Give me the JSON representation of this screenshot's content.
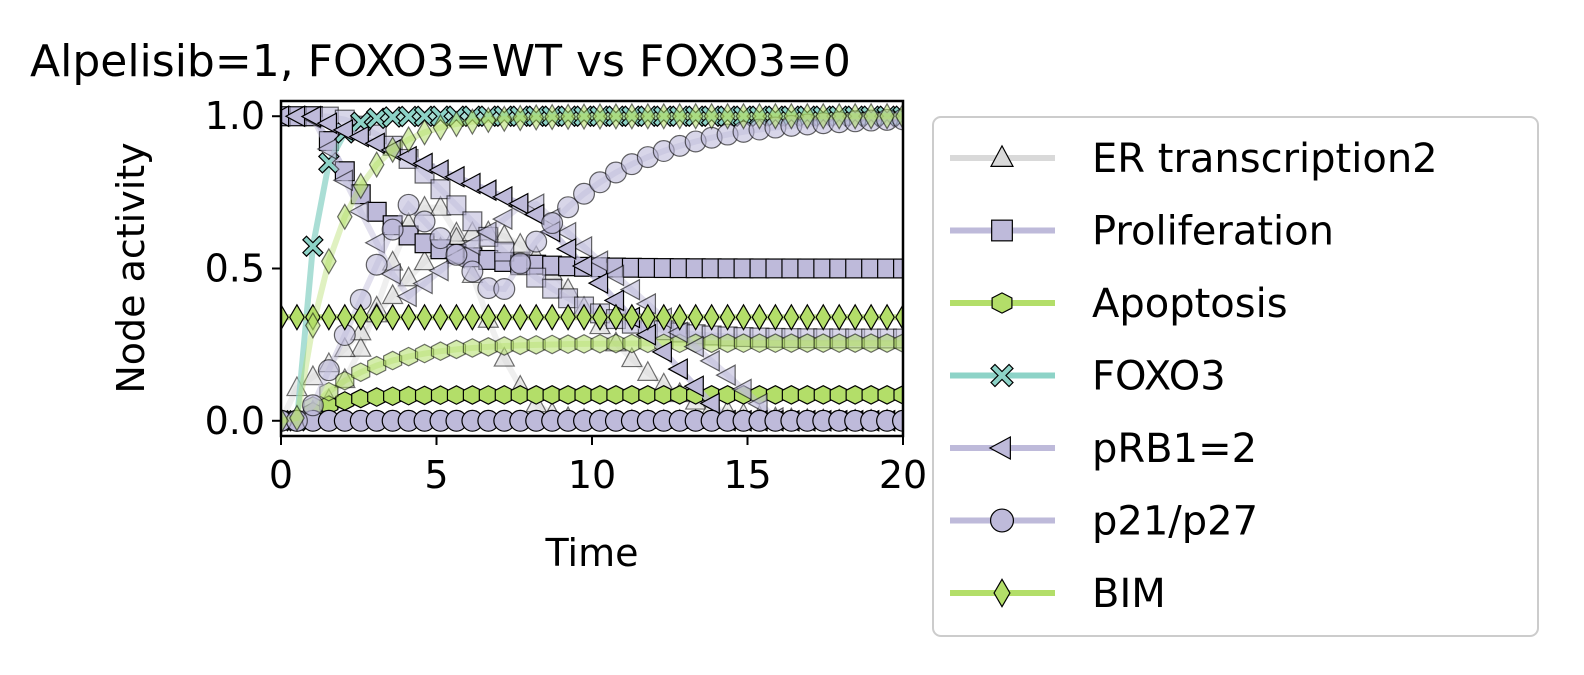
{
  "chart_data": {
    "type": "line",
    "title": "Alpelisib=1, FOXO3=WT vs FOXO3=0",
    "xlabel": "Time",
    "ylabel": "Node activity",
    "xlim": [
      0,
      20
    ],
    "ylim": [
      -0.05,
      1.05
    ],
    "xticks": [
      0,
      5,
      10,
      15,
      20
    ],
    "xtick_labels": [
      "0",
      "5",
      "10",
      "15",
      "20"
    ],
    "yticks": [
      0.0,
      0.5,
      1.0
    ],
    "ytick_labels": [
      "0.0",
      "0.5",
      "1.0"
    ],
    "grid": false,
    "legend_position": "right, outside",
    "series": [
      {
        "name": "ER transcription2",
        "color": "#d9d9d9",
        "marker": "triangle-up"
      },
      {
        "name": "Proliferation",
        "color": "#bebada",
        "marker": "square"
      },
      {
        "name": "Apoptosis",
        "color": "#b3de69",
        "marker": "hexagon"
      },
      {
        "name": "FOXO3",
        "color": "#8dd3c7",
        "marker": "x"
      },
      {
        "name": "pRB1=2",
        "color": "#bebada",
        "marker": "triangle-left"
      },
      {
        "name": "p21/p27",
        "color": "#bebada",
        "marker": "circle"
      },
      {
        "name": "BIM",
        "color": "#b3de69",
        "marker": "diamond"
      }
    ]
  }
}
